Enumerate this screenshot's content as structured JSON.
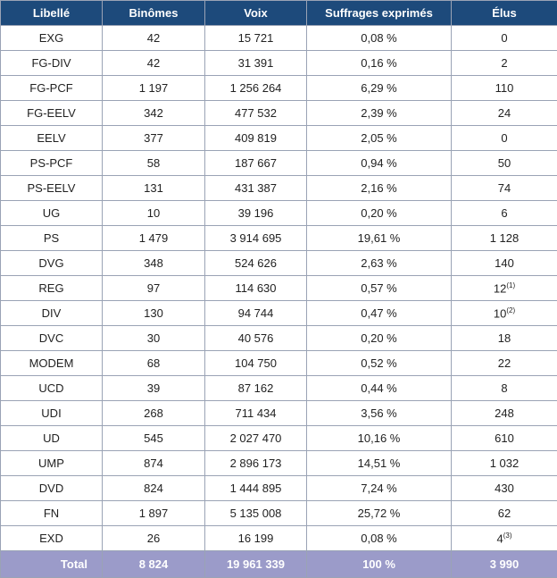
{
  "table": {
    "header": [
      "Libellé",
      "Binômes",
      "Voix",
      "Suffrages exprimés",
      "Élus"
    ],
    "rows": [
      [
        "EXG",
        "42",
        "15 721",
        "0,08 %",
        "0"
      ],
      [
        "FG-DIV",
        "42",
        "31 391",
        "0,16 %",
        "2"
      ],
      [
        "FG-PCF",
        "1 197",
        "1 256 264",
        "6,29 %",
        "110"
      ],
      [
        "FG-EELV",
        "342",
        "477 532",
        "2,39 %",
        "24"
      ],
      [
        "EELV",
        "377",
        "409 819",
        "2,05 %",
        "0"
      ],
      [
        "PS-PCF",
        "58",
        "187 667",
        "0,94 %",
        "50"
      ],
      [
        "PS-EELV",
        "131",
        "431 387",
        "2,16 %",
        "74"
      ],
      [
        "UG",
        "10",
        "39 196",
        "0,20 %",
        "6"
      ],
      [
        "PS",
        "1 479",
        "3 914 695",
        "19,61 %",
        "1 128"
      ],
      [
        "DVG",
        "348",
        "524 626",
        "2,63 %",
        "140"
      ],
      [
        "REG",
        "97",
        "114 630",
        "0,57 %",
        {
          "text": "12",
          "sup": "(1)"
        }
      ],
      [
        "DIV",
        "130",
        "94 744",
        "0,47 %",
        {
          "text": "10",
          "sup": "(2)"
        }
      ],
      [
        "DVC",
        "30",
        "40 576",
        "0,20 %",
        "18"
      ],
      [
        "MODEM",
        "68",
        "104 750",
        "0,52 %",
        "22"
      ],
      [
        "UCD",
        "39",
        "87 162",
        "0,44 %",
        "8"
      ],
      [
        "UDI",
        "268",
        "711 434",
        "3,56 %",
        "248"
      ],
      [
        "UD",
        "545",
        "2 027 470",
        "10,16 %",
        "610"
      ],
      [
        "UMP",
        "874",
        "2 896 173",
        "14,51 %",
        "1 032"
      ],
      [
        "DVD",
        "824",
        "1 444 895",
        "7,24 %",
        "430"
      ],
      [
        "FN",
        "1 897",
        "5 135 008",
        "25,72 %",
        "62"
      ],
      [
        "EXD",
        "26",
        "16 199",
        "0,08 %",
        {
          "text": "4",
          "sup": "(3)"
        }
      ]
    ],
    "total": [
      "Total",
      "8 824",
      "19 961 339",
      "100 %",
      "3 990"
    ]
  }
}
